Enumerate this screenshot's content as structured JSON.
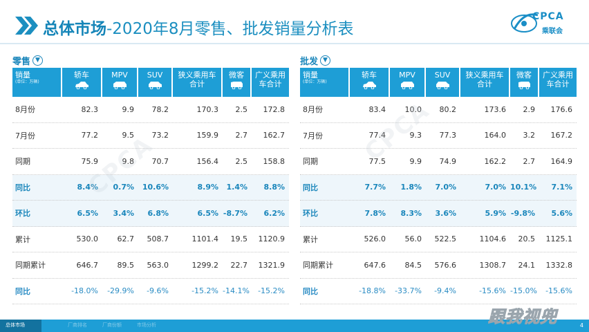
{
  "header": {
    "title_bold": "总体市场",
    "title_rest": "-2020年8月零售、批发销量分析表",
    "logo_text": "CPCA",
    "logo_sub": "乘联会"
  },
  "retail": {
    "label": "零售",
    "header": {
      "first": "销量",
      "first_unit": "(单位：万辆)",
      "cols": [
        "轿车",
        "MPV",
        "SUV",
        "狭义乘用车合计",
        "微客",
        "广义乘用车合计"
      ]
    },
    "rows": [
      {
        "label": "8月份",
        "values": [
          "82.3",
          "9.9",
          "78.2",
          "170.3",
          "2.5",
          "172.8"
        ]
      },
      {
        "label": "7月份",
        "values": [
          "77.2",
          "9.5",
          "73.2",
          "159.9",
          "2.7",
          "162.7"
        ]
      },
      {
        "label": "同期",
        "values": [
          "75.9",
          "9.8",
          "70.7",
          "156.4",
          "2.5",
          "158.8"
        ]
      },
      {
        "label": "同比",
        "values": [
          "8.4%",
          "0.7%",
          "10.6%",
          "8.9%",
          "1.4%",
          "8.8%"
        ]
      },
      {
        "label": "环比",
        "values": [
          "6.5%",
          "3.4%",
          "6.8%",
          "6.5%",
          "-8.7%",
          "6.2%"
        ]
      },
      {
        "label": "累计",
        "values": [
          "530.0",
          "62.7",
          "508.7",
          "1101.4",
          "19.5",
          "1120.9"
        ]
      },
      {
        "label": "同期累计",
        "values": [
          "646.7",
          "89.5",
          "563.0",
          "1299.2",
          "22.7",
          "1321.9"
        ]
      },
      {
        "label": "同比",
        "values": [
          "-18.0%",
          "-29.9%",
          "-9.6%",
          "-15.2%",
          "-14.1%",
          "-15.2%"
        ]
      }
    ]
  },
  "wholesale": {
    "label": "批发",
    "header": {
      "first": "销量",
      "first_unit": "(单位：万辆)",
      "cols": [
        "轿车",
        "MPV",
        "SUV",
        "狭义乘用车合计",
        "微客",
        "广义乘用车合计"
      ]
    },
    "rows": [
      {
        "label": "8月份",
        "values": [
          "83.4",
          "10.0",
          "80.2",
          "173.6",
          "2.9",
          "176.6"
        ]
      },
      {
        "label": "7月份",
        "values": [
          "77.4",
          "9.3",
          "77.3",
          "164.0",
          "3.2",
          "167.2"
        ]
      },
      {
        "label": "同期",
        "values": [
          "77.5",
          "9.9",
          "74.9",
          "162.2",
          "2.7",
          "164.9"
        ]
      },
      {
        "label": "同比",
        "values": [
          "7.7%",
          "1.8%",
          "7.0%",
          "7.0%",
          "10.1%",
          "7.1%"
        ]
      },
      {
        "label": "环比",
        "values": [
          "7.8%",
          "8.3%",
          "3.6%",
          "5.9%",
          "-9.8%",
          "5.6%"
        ]
      },
      {
        "label": "累计",
        "values": [
          "526.0",
          "56.0",
          "522.5",
          "1104.6",
          "20.5",
          "1125.1"
        ]
      },
      {
        "label": "同期累计",
        "values": [
          "647.6",
          "84.5",
          "576.6",
          "1308.7",
          "24.1",
          "1332.8"
        ]
      },
      {
        "label": "同比",
        "values": [
          "-18.8%",
          "-33.7%",
          "-9.4%",
          "-15.6%",
          "-15.0%",
          "-15.6%"
        ]
      }
    ]
  },
  "footer": {
    "tabs": [
      "总体市场",
      "厂商排名",
      "厂商份额",
      "市场分析"
    ],
    "page": "4",
    "brand_watermark": "跟我视兜"
  },
  "colors": {
    "accent": "#1e9ed6",
    "title": "#1c8fc0",
    "highlight_row": "#eef6fb"
  }
}
